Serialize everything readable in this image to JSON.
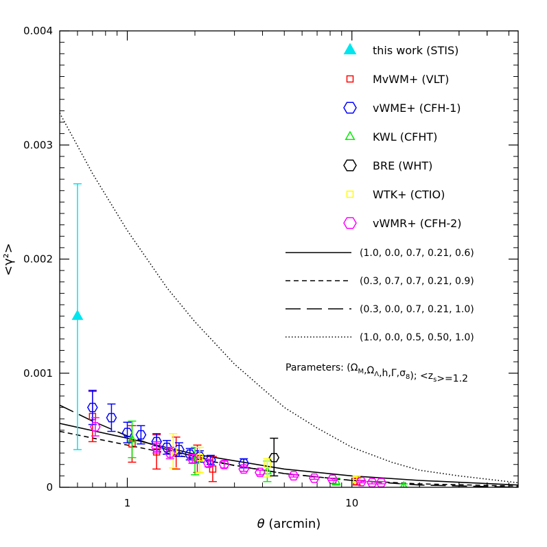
{
  "chart_data": {
    "type": "scatter",
    "xlabel": "θ (arcmin)",
    "ylabel": "<γ²>",
    "xscale": "log",
    "xlim": [
      0.5,
      55
    ],
    "ylim": [
      0,
      0.004
    ],
    "x_tick_labels": [
      {
        "value": 1,
        "label": "1"
      },
      {
        "value": 10,
        "label": "10"
      }
    ],
    "y_tick_labels": [
      {
        "value": 0,
        "label": "0"
      },
      {
        "value": 0.001,
        "label": "0.001"
      },
      {
        "value": 0.002,
        "label": "0.002"
      },
      {
        "value": 0.003,
        "label": "0.003"
      },
      {
        "value": 0.004,
        "label": "0.004"
      }
    ],
    "legend_position": "top-right",
    "series": [
      {
        "name": "this work (STIS)",
        "marker": "filled-triangle",
        "color": "#00e5ee",
        "points": [
          {
            "x": 0.6,
            "y": 0.0015,
            "lo": 0.00033,
            "hi": 0.00266
          }
        ]
      },
      {
        "name": "MvWM+ (VLT)",
        "marker": "square",
        "color": "#ff0000",
        "points": [
          {
            "x": 0.7,
            "y": 0.00062,
            "lo": 0.0004,
            "hi": 0.00084
          },
          {
            "x": 1.05,
            "y": 0.00038,
            "lo": 0.00022,
            "hi": 0.00054
          },
          {
            "x": 1.35,
            "y": 0.00031,
            "lo": 0.00016,
            "hi": 0.00046
          },
          {
            "x": 1.65,
            "y": 0.0003,
            "lo": 0.00016,
            "hi": 0.00044
          },
          {
            "x": 2.05,
            "y": 0.00025,
            "lo": 0.00013,
            "hi": 0.00037
          },
          {
            "x": 2.4,
            "y": 0.00016,
            "lo": 5e-05,
            "hi": 0.00027
          },
          {
            "x": 10.5,
            "y": 5e-05,
            "lo": 2e-05,
            "hi": 8e-05
          }
        ]
      },
      {
        "name": "vWME+ (CFH-1)",
        "marker": "hexagon",
        "color": "#0000ff",
        "points": [
          {
            "x": 0.7,
            "y": 0.0007,
            "lo": 0.00055,
            "hi": 0.00085
          },
          {
            "x": 0.85,
            "y": 0.00061,
            "lo": 0.00049,
            "hi": 0.00073
          },
          {
            "x": 1.0,
            "y": 0.00048,
            "lo": 0.00039,
            "hi": 0.00057
          },
          {
            "x": 1.15,
            "y": 0.00046,
            "lo": 0.00038,
            "hi": 0.00054
          },
          {
            "x": 1.35,
            "y": 0.0004,
            "lo": 0.00033,
            "hi": 0.00047
          },
          {
            "x": 1.5,
            "y": 0.00035,
            "lo": 0.00029,
            "hi": 0.00041
          },
          {
            "x": 1.7,
            "y": 0.00033,
            "lo": 0.00027,
            "hi": 0.00039
          },
          {
            "x": 1.9,
            "y": 0.00029,
            "lo": 0.00024,
            "hi": 0.00034
          },
          {
            "x": 2.1,
            "y": 0.00027,
            "lo": 0.00022,
            "hi": 0.00032
          },
          {
            "x": 2.35,
            "y": 0.00024,
            "lo": 0.0002,
            "hi": 0.00028
          },
          {
            "x": 3.3,
            "y": 0.00021,
            "lo": 0.00017,
            "hi": 0.00025
          }
        ]
      },
      {
        "name": "KWL (CFHT)",
        "marker": "triangle",
        "color": "#00ee00",
        "points": [
          {
            "x": 1.05,
            "y": 0.00042,
            "lo": 0.00026,
            "hi": 0.00058
          },
          {
            "x": 2.0,
            "y": 0.00023,
            "lo": 0.00011,
            "hi": 0.00035
          },
          {
            "x": 4.2,
            "y": 0.00014,
            "lo": 5e-05,
            "hi": 0.00023
          },
          {
            "x": 8.5,
            "y": 5e-05,
            "lo": 2e-05,
            "hi": 8e-05
          },
          {
            "x": 17.0,
            "y": 1e-05,
            "lo": 0.0,
            "hi": 3e-05
          }
        ]
      },
      {
        "name": "BRE (WHT)",
        "marker": "hexagon",
        "color": "#000000",
        "points": [
          {
            "x": 4.5,
            "y": 0.00026,
            "lo": 0.0001,
            "hi": 0.00043
          }
        ]
      },
      {
        "name": "WTK+ (CTIO)",
        "marker": "square",
        "color": "#ffff00",
        "points": [
          {
            "x": 1.6,
            "y": 0.00032,
            "lo": 0.00017,
            "hi": 0.00047
          },
          {
            "x": 2.1,
            "y": 0.00026,
            "lo": 0.00013,
            "hi": 0.00035
          },
          {
            "x": 4.2,
            "y": 0.0002,
            "lo": 9e-05,
            "hi": 0.00025
          },
          {
            "x": 10.5,
            "y": 7e-05,
            "lo": 4e-05,
            "hi": 0.0001
          }
        ]
      },
      {
        "name": "vWMR+ (CFH-2)",
        "marker": "hexagon",
        "color": "#ff00ff",
        "points": [
          {
            "x": 0.72,
            "y": 0.00053,
            "lo": 0.00045,
            "hi": 0.00061
          },
          {
            "x": 1.35,
            "y": 0.00035,
            "lo": 0.0003,
            "hi": 0.0004
          },
          {
            "x": 1.55,
            "y": 0.0003,
            "lo": 0.00025,
            "hi": 0.00035
          },
          {
            "x": 1.95,
            "y": 0.00025,
            "lo": 0.00021,
            "hi": 0.00029
          },
          {
            "x": 2.3,
            "y": 0.00021,
            "lo": 0.00018,
            "hi": 0.00024
          },
          {
            "x": 2.7,
            "y": 0.0002,
            "lo": 0.00017,
            "hi": 0.00023
          },
          {
            "x": 3.3,
            "y": 0.00016,
            "lo": 0.00014,
            "hi": 0.00018
          },
          {
            "x": 3.9,
            "y": 0.00013,
            "lo": 0.00011,
            "hi": 0.00015
          },
          {
            "x": 5.5,
            "y": 0.0001,
            "lo": 9e-05,
            "hi": 0.00011
          },
          {
            "x": 6.8,
            "y": 8e-05,
            "lo": 7e-05,
            "hi": 9e-05
          },
          {
            "x": 8.2,
            "y": 7e-05,
            "lo": 6e-05,
            "hi": 8e-05
          },
          {
            "x": 11.0,
            "y": 5e-05,
            "lo": 4e-05,
            "hi": 6e-05
          },
          {
            "x": 12.3,
            "y": 4e-05,
            "lo": 3e-05,
            "hi": 5e-05
          },
          {
            "x": 13.5,
            "y": 4e-05,
            "lo": 3e-05,
            "hi": 5e-05
          }
        ]
      }
    ],
    "curves": [
      {
        "name": "(1.0, 0.0, 0.7, 0.21, 0.6)",
        "style": "solid",
        "x": [
          0.5,
          1,
          2,
          5,
          10,
          20,
          55
        ],
        "y": [
          0.00056,
          0.00043,
          0.00029,
          0.00016,
          0.0001,
          6e-05,
          2e-05
        ]
      },
      {
        "name": "(0.3, 0.7, 0.7, 0.21, 0.9)",
        "style": "short-dash",
        "x": [
          0.5,
          1,
          2,
          5,
          10,
          20,
          55
        ],
        "y": [
          0.00049,
          0.00037,
          0.00025,
          0.00012,
          6e-05,
          3e-05,
          1e-05
        ]
      },
      {
        "name": "(0.3, 0.0, 0.7, 0.21, 1.0)",
        "style": "long-dash",
        "x": [
          0.5,
          0.7,
          1,
          1.5,
          2,
          3,
          5,
          10,
          20,
          55
        ],
        "y": [
          0.00072,
          0.00058,
          0.00045,
          0.00033,
          0.00027,
          0.00019,
          0.00012,
          6e-05,
          2e-05,
          0.0
        ]
      },
      {
        "name": "(1.0, 0.0, 0.5, 0.50, 1.0)",
        "style": "dotted",
        "x": [
          0.5,
          0.7,
          1,
          1.5,
          2,
          3,
          5,
          7,
          10,
          15,
          20,
          30,
          55
        ],
        "y": [
          0.00328,
          0.00275,
          0.00225,
          0.00175,
          0.00145,
          0.00108,
          0.0007,
          0.00052,
          0.00035,
          0.00022,
          0.00015,
          0.0001,
          4e-05
        ]
      }
    ],
    "annotation": "Parameters: (Ω_M,Ω_Λ,h,Γ,σ_8); <z_s>=1.2"
  }
}
